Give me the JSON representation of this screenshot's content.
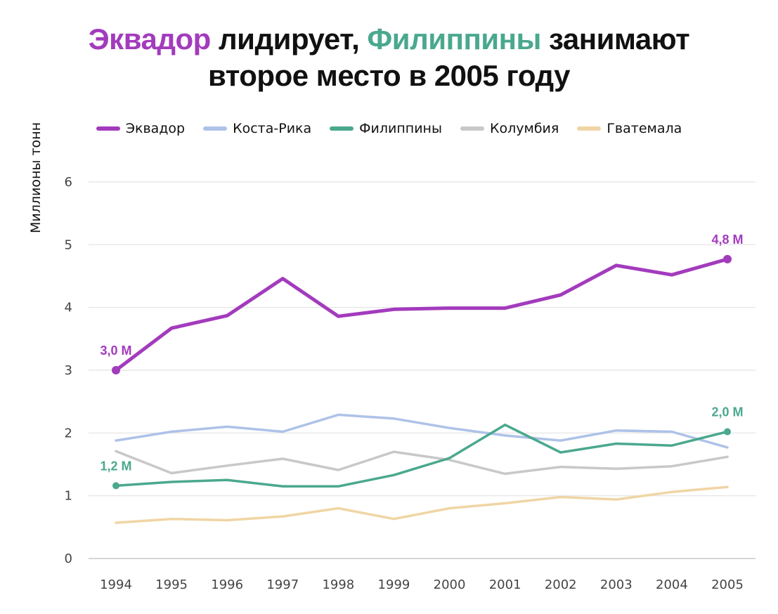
{
  "title": {
    "part1": "Эквадор",
    "part2": " лидирует, ",
    "part3": "Филиппины",
    "part4": " занимают",
    "line2": "второе место в 2005 году"
  },
  "chart_data": {
    "type": "line",
    "ylabel": "Миллионы тонн",
    "xlabel": "",
    "ylim": [
      0,
      6
    ],
    "yticks": [
      "0",
      "1",
      "2",
      "3",
      "4",
      "5",
      "6"
    ],
    "grid": true,
    "legend_position": "top",
    "x": [
      "1994",
      "1995",
      "1996",
      "1997",
      "1998",
      "1999",
      "2000",
      "2001",
      "2002",
      "2003",
      "2004",
      "2005"
    ],
    "series": [
      {
        "name": "Эквадор",
        "color": "#a33bbd",
        "width": 5,
        "values": [
          3.0,
          3.67,
          3.87,
          4.46,
          3.86,
          3.97,
          3.99,
          3.99,
          4.2,
          4.67,
          4.52,
          4.77
        ]
      },
      {
        "name": "Коста-Рика",
        "color": "#aec2e8",
        "width": 3.5,
        "values": [
          1.88,
          2.02,
          2.1,
          2.02,
          2.29,
          2.23,
          2.08,
          1.96,
          1.88,
          2.04,
          2.02,
          1.77
        ]
      },
      {
        "name": "Филиппины",
        "color": "#4aa88e",
        "width": 3.5,
        "values": [
          1.16,
          1.22,
          1.25,
          1.15,
          1.15,
          1.33,
          1.6,
          2.13,
          1.69,
          1.83,
          1.8,
          2.02
        ]
      },
      {
        "name": "Колумбия",
        "color": "#c8c8c8",
        "width": 3.5,
        "values": [
          1.71,
          1.36,
          1.48,
          1.59,
          1.41,
          1.7,
          1.57,
          1.35,
          1.46,
          1.43,
          1.47,
          1.62
        ]
      },
      {
        "name": "Гватемала",
        "color": "#f0d5a4",
        "width": 3.5,
        "values": [
          0.57,
          0.63,
          0.61,
          0.67,
          0.8,
          0.63,
          0.8,
          0.88,
          0.98,
          0.94,
          1.06,
          1.14
        ]
      }
    ],
    "annotations": [
      {
        "series": 0,
        "index": 0,
        "text": "3,0 M",
        "color": "#a33bbd"
      },
      {
        "series": 0,
        "index": 11,
        "text": "4,8 M",
        "color": "#a33bbd"
      },
      {
        "series": 2,
        "index": 0,
        "text": "1,2 M",
        "color": "#4aa88e"
      },
      {
        "series": 2,
        "index": 11,
        "text": "2,0 M",
        "color": "#4aa88e"
      }
    ]
  }
}
